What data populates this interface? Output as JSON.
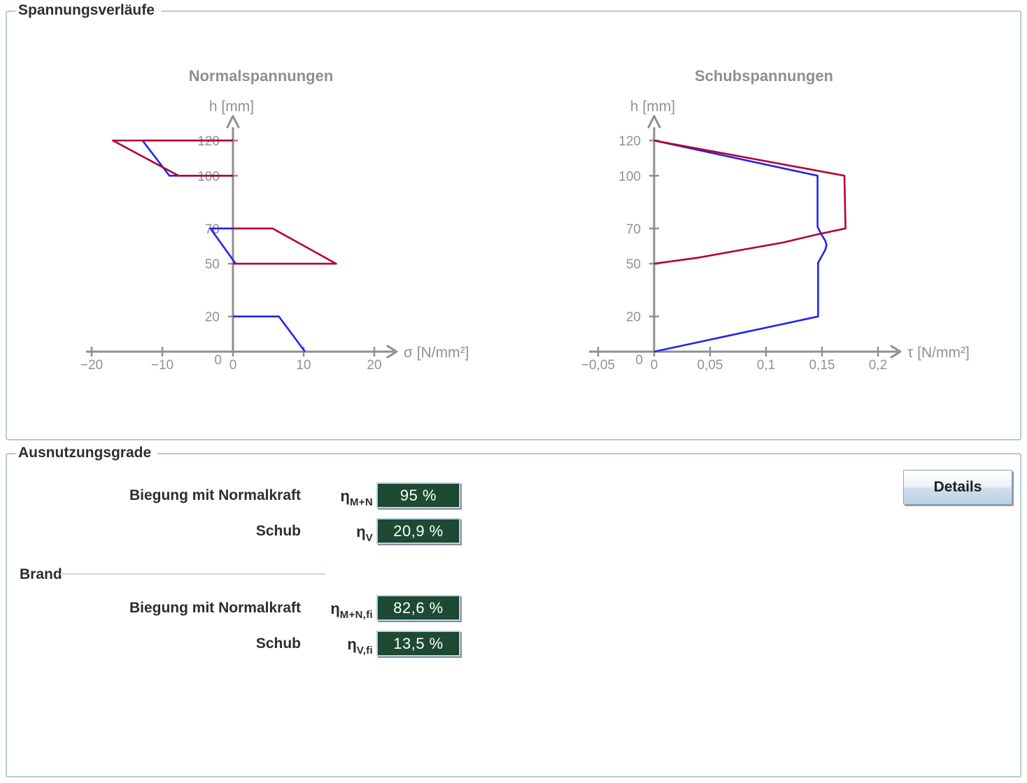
{
  "panels": {
    "spannungsverlaeufe": {
      "legend": "Spannungsverläufe"
    },
    "ausnutzungsgrade": {
      "legend": "Ausnutzungsgrade"
    }
  },
  "chart_data": [
    {
      "type": "line",
      "title": "Normalspannungen",
      "xlabel": "σ [N/mm²]",
      "ylabel": "h [mm]",
      "xlim": [
        -20,
        20
      ],
      "ylim": [
        0,
        120
      ],
      "grid": false,
      "legend_position": "none",
      "xticks": {
        "values": [
          -20,
          -10,
          0,
          10,
          20
        ],
        "labels": [
          "−20",
          "−10",
          "0",
          "10",
          "20"
        ]
      },
      "yticks": {
        "values": [
          0,
          20,
          50,
          70,
          100,
          120
        ],
        "labels": [
          "0",
          "20",
          "50",
          "70",
          "100",
          "120"
        ]
      },
      "series": [
        {
          "name": "bemessung-kalt",
          "color": "#2323ef",
          "segments": [
            [
              [
                0,
                120
              ],
              [
                -12.8,
                120
              ],
              [
                -9.0,
                100
              ],
              [
                0,
                100
              ]
            ],
            [
              [
                0,
                70
              ],
              [
                -3.2,
                70
              ],
              [
                0.4,
                50
              ],
              [
                0,
                50
              ]
            ],
            [
              [
                0,
                20
              ],
              [
                6.5,
                20
              ],
              [
                10.2,
                0
              ]
            ]
          ]
        },
        {
          "name": "brand-fall",
          "color": "#b10230",
          "segments": [
            [
              [
                0,
                120
              ],
              [
                -17.0,
                120
              ],
              [
                -7.7,
                100
              ],
              [
                0,
                100
              ]
            ],
            [
              [
                0,
                70
              ],
              [
                5.6,
                70
              ],
              [
                14.6,
                50
              ],
              [
                0,
                50
              ]
            ]
          ]
        }
      ]
    },
    {
      "type": "line",
      "title": "Schubspannungen",
      "xlabel": "τ [N/mm²]",
      "ylabel": "h [mm]",
      "xlim": [
        -0.05,
        0.2
      ],
      "ylim": [
        0,
        120
      ],
      "grid": false,
      "legend_position": "none",
      "xticks": {
        "values": [
          -0.05,
          0,
          0.05,
          0.1,
          0.15,
          0.2
        ],
        "labels": [
          "−0,05",
          "0",
          "0,05",
          "0,1",
          "0,15",
          "0,2"
        ]
      },
      "yticks": {
        "values": [
          0,
          20,
          50,
          70,
          100,
          120
        ],
        "labels": [
          "0",
          "20",
          "50",
          "70",
          "100",
          "120"
        ]
      },
      "series": [
        {
          "name": "bemessung-kalt",
          "color": "#2323ef",
          "segments": [
            [
              [
                0,
                120
              ],
              [
                0.146,
                100
              ],
              [
                0.146,
                71
              ],
              [
                0.1495,
                66.5
              ],
              [
                0.153,
                63
              ],
              [
                0.154,
                60.5
              ],
              [
                0.153,
                58
              ],
              [
                0.1495,
                54
              ],
              [
                0.1465,
                50.5
              ],
              [
                0.1465,
                20
              ],
              [
                0,
                0
              ]
            ]
          ]
        },
        {
          "name": "brand-fall",
          "color": "#b10230",
          "segments": [
            [
              [
                0,
                120
              ],
              [
                0.17,
                100
              ],
              [
                0.171,
                70
              ],
              [
                0.147,
                66.8
              ],
              [
                0.115,
                62
              ],
              [
                0.078,
                57.8
              ],
              [
                0.04,
                53.5
              ],
              [
                0,
                50
              ]
            ]
          ]
        }
      ]
    }
  ],
  "utilization": {
    "brand_label": "Brand",
    "details_button": "Details",
    "rows": [
      {
        "label": "Biegung mit Normalkraft",
        "symbol": "η",
        "sub": "M+N",
        "value": "95 %"
      },
      {
        "label": "Schub",
        "symbol": "η",
        "sub": "V",
        "value": "20,9 %"
      },
      {
        "label": "Biegung mit Normalkraft",
        "symbol": "η",
        "sub": "M+N,fi",
        "value": "82,6 %"
      },
      {
        "label": "Schub",
        "symbol": "η",
        "sub": "V,fi",
        "value": "13,5 %"
      }
    ]
  },
  "colors": {
    "groupbox_border": "#b5c9dc",
    "axis_gray": "#8f8f8f",
    "tick_label_gray": "#919191",
    "chart_title_gray": "#8f8f8f",
    "series_blue": "#2323ef",
    "series_red": "#b10230",
    "value_box_green": "#1d4a33",
    "value_box_border": "#bdd3e6"
  }
}
